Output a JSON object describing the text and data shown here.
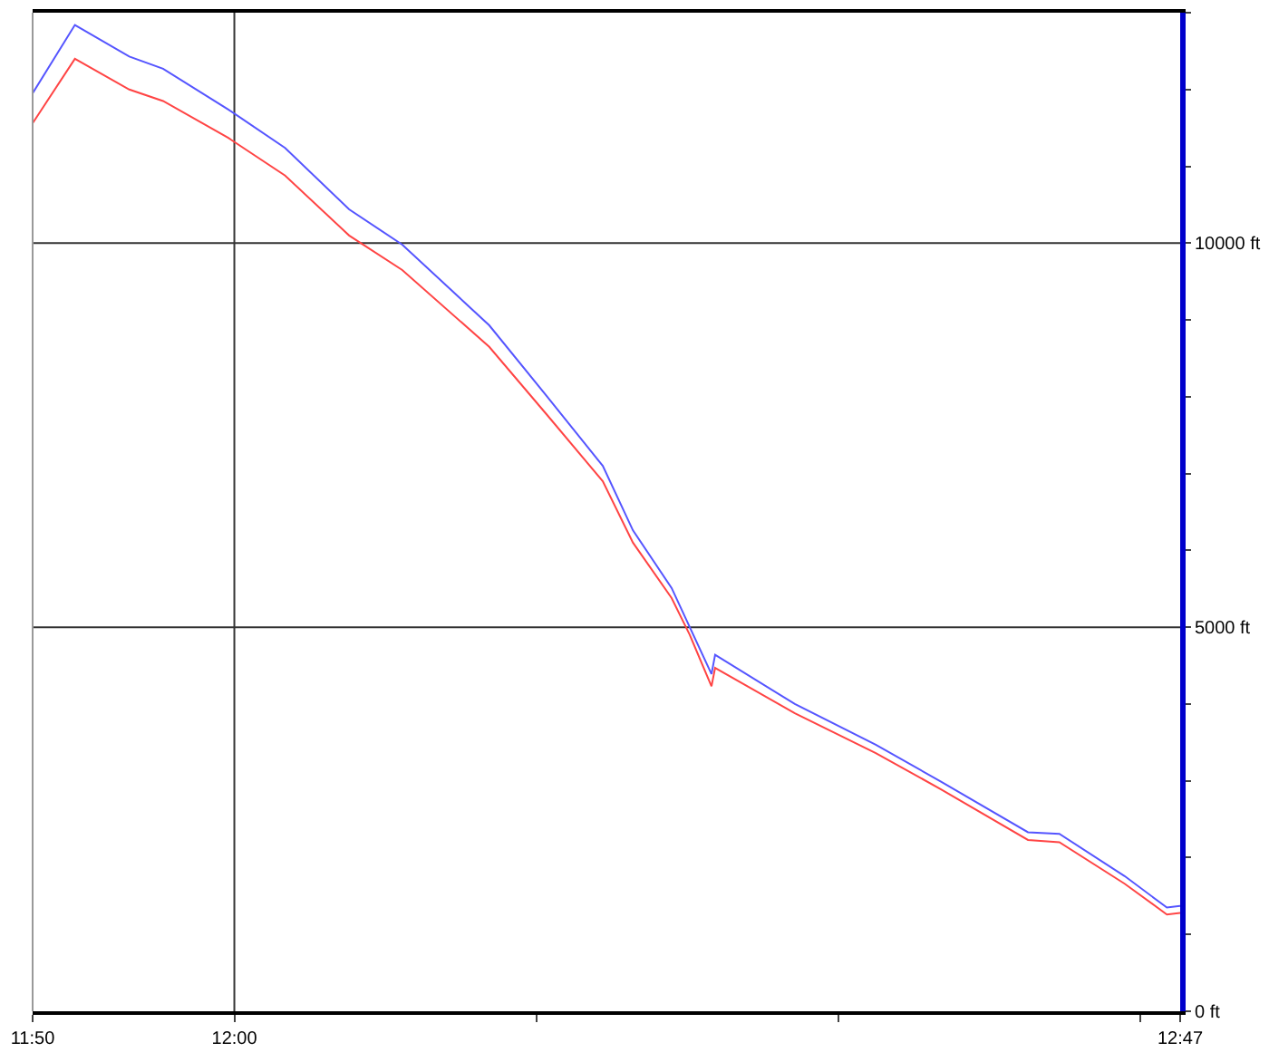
{
  "chart_data": {
    "type": "line",
    "x": [
      11.833,
      11.868,
      11.913,
      11.941,
      11.995,
      12.042,
      12.095,
      12.139,
      12.211,
      12.258,
      12.305,
      12.33,
      12.362,
      12.377,
      12.395,
      12.398,
      12.464,
      12.531,
      12.585,
      12.657,
      12.683,
      12.737,
      12.772,
      12.783
    ],
    "series": [
      {
        "color": "#5555ff",
        "values": [
          11950,
          12840,
          12430,
          12270,
          11740,
          11240,
          10440,
          9980,
          8930,
          8020,
          7100,
          6260,
          5510,
          5000,
          4390,
          4640,
          4000,
          3470,
          2990,
          2330,
          2310,
          1760,
          1350,
          1370
        ]
      },
      {
        "color": "#ff4444",
        "values": [
          11560,
          12400,
          12000,
          11850,
          11370,
          10880,
          10100,
          9650,
          8650,
          7780,
          6900,
          6100,
          5380,
          4900,
          4230,
          4470,
          3880,
          3360,
          2890,
          2230,
          2200,
          1660,
          1260,
          1280
        ]
      }
    ],
    "xlim": [
      11.833,
      12.783
    ],
    "xticks": [
      {
        "value": 11.833,
        "label": "11:50"
      },
      {
        "value": 12.0,
        "label": "12:00"
      },
      {
        "value": 12.25,
        "label": null
      },
      {
        "value": 12.5,
        "label": null
      },
      {
        "value": 12.75,
        "label": null
      },
      {
        "value": 12.783,
        "label": "12:47"
      }
    ],
    "ylim": [
      0,
      13000
    ],
    "yticks": [
      {
        "value": 0,
        "label": "0 ft"
      },
      {
        "value": 1000,
        "label": null
      },
      {
        "value": 2000,
        "label": null
      },
      {
        "value": 3000,
        "label": null
      },
      {
        "value": 4000,
        "label": null
      },
      {
        "value": 5000,
        "label": "5000 ft"
      },
      {
        "value": 6000,
        "label": null
      },
      {
        "value": 7000,
        "label": null
      },
      {
        "value": 8000,
        "label": null
      },
      {
        "value": 9000,
        "label": null
      },
      {
        "value": 10000,
        "label": "10000 ft"
      },
      {
        "value": 11000,
        "label": null
      },
      {
        "value": 12000,
        "label": null
      },
      {
        "value": 13000,
        "label": null
      }
    ],
    "grid": true,
    "marker": "none",
    "line_style": "solid"
  }
}
